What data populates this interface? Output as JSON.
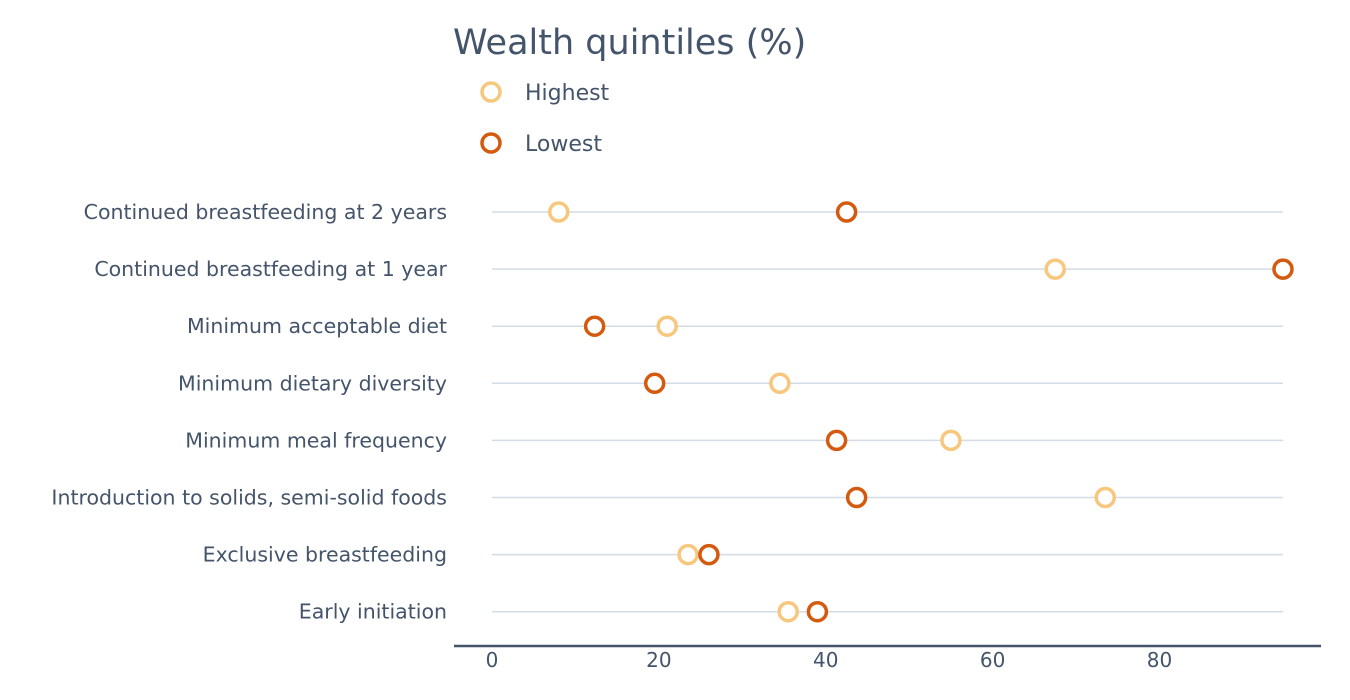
{
  "chart_data": {
    "type": "dot",
    "title": "Wealth quintiles (%)",
    "xlabel": "",
    "ylabel": "",
    "xlim": [
      0,
      95
    ],
    "x_ticks": [
      0,
      20,
      40,
      60,
      80
    ],
    "grid": true,
    "legend_position": "top-left",
    "categories": [
      "Continued breastfeeding at 2 years",
      "Continued breastfeeding at 1 year",
      "Minimum acceptable diet",
      "Minimum dietary diversity",
      "Minimum meal frequency",
      "Introduction to solids, semi-solid foods",
      "Exclusive breastfeeding",
      "Early initiation"
    ],
    "series": [
      {
        "name": "Highest",
        "color": "#f8c77e",
        "values": [
          8,
          67.5,
          21,
          34.5,
          55,
          73.5,
          23.5,
          35.5
        ]
      },
      {
        "name": "Lowest",
        "color": "#d35a0e",
        "values": [
          42.5,
          94.8,
          12.3,
          19.5,
          41.3,
          43.7,
          26,
          39
        ]
      }
    ]
  }
}
